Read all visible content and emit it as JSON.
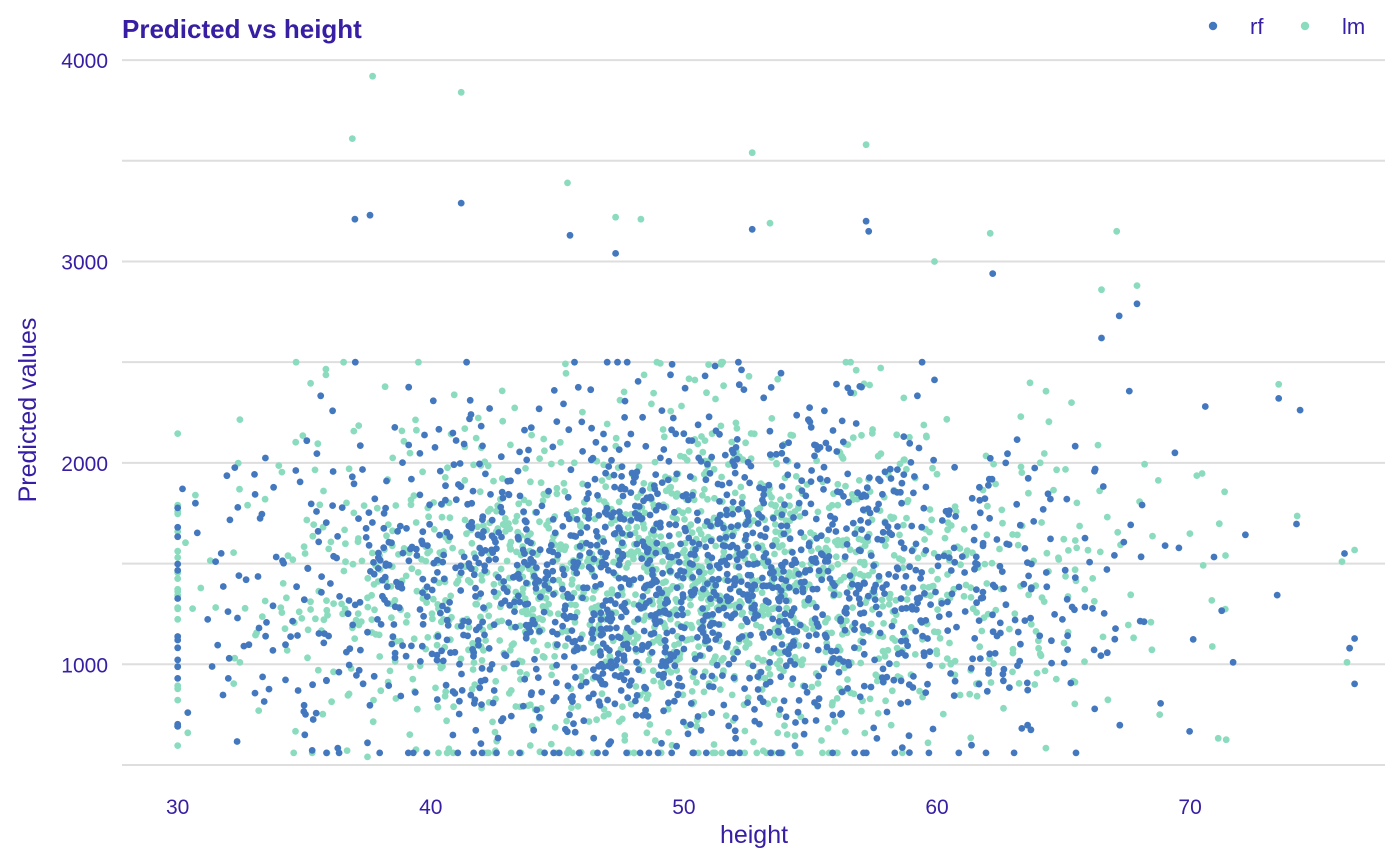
{
  "colors": {
    "text": "#371ea3",
    "grid": "#dedede",
    "rf": "#4378bf",
    "lm": "#8bdcbe"
  },
  "chart_data": {
    "type": "scatter",
    "title": "Predicted vs height",
    "xlabel": "height",
    "ylabel": "Predicted values",
    "xlim": [
      27.8,
      77.7
    ],
    "ylim": [
      500,
      4050
    ],
    "x_ticks": [
      30,
      40,
      50,
      60,
      70
    ],
    "y_ticks": [
      1000,
      2000,
      3000,
      4000
    ],
    "y_gridlines": [
      500,
      1000,
      1500,
      2000,
      2500,
      3000,
      3500,
      4000
    ],
    "grid": "horizontal",
    "legend_position": "top-right",
    "legend": [
      "rf",
      "lm"
    ],
    "series": [
      {
        "name": "rf",
        "generated_points": 1700,
        "center": [
          49.5,
          1300
        ],
        "spread": [
          8.0,
          420
        ],
        "outliers": [
          [
            37.0,
            3210
          ],
          [
            37.6,
            3230
          ],
          [
            41.2,
            3290
          ],
          [
            45.5,
            3130
          ],
          [
            47.3,
            3040
          ],
          [
            52.7,
            3160
          ],
          [
            57.2,
            3200
          ],
          [
            57.3,
            3150
          ],
          [
            62.2,
            2940
          ],
          [
            66.5,
            2620
          ],
          [
            67.2,
            2730
          ],
          [
            67.9,
            2790
          ],
          [
            70.6,
            2280
          ],
          [
            73.5,
            2320
          ],
          [
            76.1,
            1550
          ],
          [
            76.3,
            1080
          ],
          [
            69.4,
            2050
          ],
          [
            71.7,
            1010
          ],
          [
            30.0,
            930
          ],
          [
            30.4,
            760
          ],
          [
            32.0,
            930
          ],
          [
            37.5,
            610
          ],
          [
            30.7,
            1800
          ],
          [
            31.5,
            1510
          ],
          [
            35.1,
            2110
          ]
        ]
      },
      {
        "name": "lm",
        "generated_points": 1700,
        "center": [
          49.5,
          1320
        ],
        "spread": [
          8.0,
          430
        ],
        "outliers": [
          [
            37.7,
            3920
          ],
          [
            41.2,
            3840
          ],
          [
            36.9,
            3610
          ],
          [
            57.2,
            3580
          ],
          [
            52.7,
            3540
          ],
          [
            45.4,
            3390
          ],
          [
            47.3,
            3220
          ],
          [
            48.3,
            3210
          ],
          [
            53.4,
            3190
          ],
          [
            59.9,
            3000
          ],
          [
            62.1,
            3140
          ],
          [
            67.1,
            3150
          ],
          [
            66.5,
            2860
          ],
          [
            67.9,
            2880
          ],
          [
            73.5,
            2390
          ],
          [
            76.2,
            1010
          ],
          [
            76.0,
            1510
          ],
          [
            30.4,
            660
          ],
          [
            37.5,
            540
          ],
          [
            33.2,
            770
          ],
          [
            30.7,
            1840
          ],
          [
            68.8,
            750
          ],
          [
            71.4,
            1540
          ]
        ]
      }
    ]
  }
}
